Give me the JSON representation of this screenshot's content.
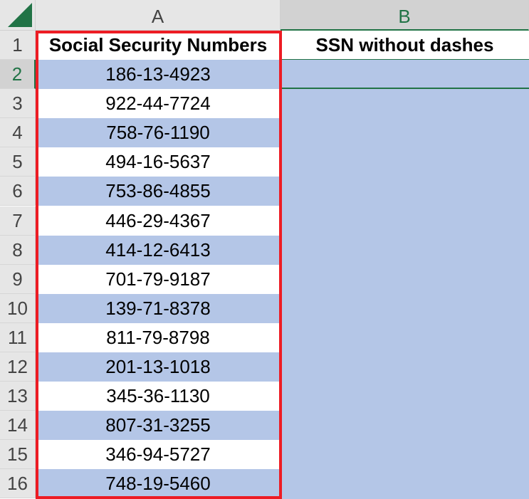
{
  "columns": [
    {
      "label": "A",
      "selected": false
    },
    {
      "label": "B",
      "selected": true
    }
  ],
  "header": {
    "a": "Social Security Numbers",
    "b": "SSN without dashes"
  },
  "rows": [
    "186-13-4923",
    "922-44-7724",
    "758-76-1190",
    "494-16-5637",
    "753-86-4855",
    "446-29-4367",
    "414-12-6413",
    "701-79-9187",
    "139-71-8378",
    "811-79-8798",
    "201-13-1018",
    "345-36-1130",
    "807-31-3255",
    "346-94-5727",
    "748-19-5460"
  ],
  "colors": {
    "band": "#b4c6e7",
    "highlight_border": "#ed1c24",
    "excel_green": "#217346"
  }
}
